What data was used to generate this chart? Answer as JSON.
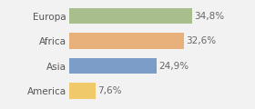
{
  "categories": [
    "America",
    "Asia",
    "Africa",
    "Europa"
  ],
  "values": [
    7.6,
    24.9,
    32.6,
    34.8
  ],
  "bar_colors": [
    "#f0c96b",
    "#7b9dc7",
    "#e8b07a",
    "#a8be8c"
  ],
  "labels": [
    "7,6%",
    "24,9%",
    "32,6%",
    "34,8%"
  ],
  "background_color": "#f2f2f2",
  "xlim": [
    0,
    44
  ],
  "bar_height": 0.65,
  "label_fontsize": 7.5,
  "tick_fontsize": 7.5,
  "label_color": "#666666",
  "tick_color": "#555555"
}
